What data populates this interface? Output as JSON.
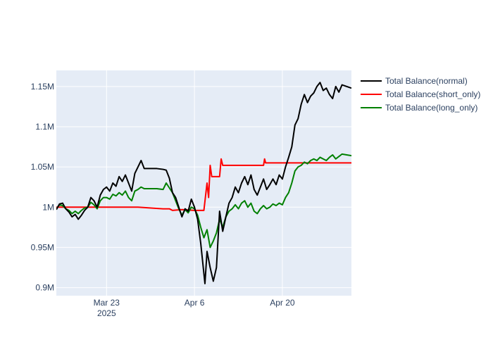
{
  "chart_data": {
    "type": "line",
    "title": "",
    "xlabel": "",
    "ylabel": "",
    "x_range": [
      "2025-03-15",
      "2025-05-01"
    ],
    "ylim": [
      0.89,
      1.17
    ],
    "grid": true,
    "legend_position": "right-top",
    "x_ticks": [
      {
        "date": "2025-03-23",
        "label": "Mar 23",
        "sublabel": "2025"
      },
      {
        "date": "2025-04-06",
        "label": "Apr 6",
        "sublabel": ""
      },
      {
        "date": "2025-04-20",
        "label": "Apr 20",
        "sublabel": ""
      }
    ],
    "y_ticks": [
      {
        "value": 0.9,
        "label": "0.9M"
      },
      {
        "value": 0.95,
        "label": "0.95M"
      },
      {
        "value": 1.0,
        "label": "1M"
      },
      {
        "value": 1.05,
        "label": "1.05M"
      },
      {
        "value": 1.1,
        "label": "1.1M"
      },
      {
        "value": 1.15,
        "label": "1.15M"
      }
    ],
    "series": [
      {
        "name": "Total Balance(normal)",
        "color": "#000000",
        "points": [
          [
            "2025-03-15",
            0.997
          ],
          [
            "2025-03-15T12:00",
            1.004
          ],
          [
            "2025-03-16",
            1.005
          ],
          [
            "2025-03-16T12:00",
            0.998
          ],
          [
            "2025-03-17",
            0.994
          ],
          [
            "2025-03-17T12:00",
            0.988
          ],
          [
            "2025-03-18",
            0.991
          ],
          [
            "2025-03-18T12:00",
            0.985
          ],
          [
            "2025-03-19",
            0.99
          ],
          [
            "2025-03-19T12:00",
            0.996
          ],
          [
            "2025-03-20",
            1.0
          ],
          [
            "2025-03-20T12:00",
            1.012
          ],
          [
            "2025-03-21",
            1.008
          ],
          [
            "2025-03-21T12:00",
            1.0
          ],
          [
            "2025-03-22",
            1.015
          ],
          [
            "2025-03-22T12:00",
            1.022
          ],
          [
            "2025-03-23",
            1.025
          ],
          [
            "2025-03-23T12:00",
            1.02
          ],
          [
            "2025-03-24",
            1.03
          ],
          [
            "2025-03-24T12:00",
            1.026
          ],
          [
            "2025-03-25",
            1.038
          ],
          [
            "2025-03-25T12:00",
            1.032
          ],
          [
            "2025-03-26",
            1.04
          ],
          [
            "2025-03-26T12:00",
            1.03
          ],
          [
            "2025-03-27",
            1.02
          ],
          [
            "2025-03-27T12:00",
            1.042
          ],
          [
            "2025-03-28",
            1.05
          ],
          [
            "2025-03-28T12:00",
            1.058
          ],
          [
            "2025-03-29",
            1.048
          ],
          [
            "2025-03-30",
            1.048
          ],
          [
            "2025-03-31",
            1.048
          ],
          [
            "2025-04-01",
            1.047
          ],
          [
            "2025-04-01T12:00",
            1.046
          ],
          [
            "2025-04-02",
            1.036
          ],
          [
            "2025-04-02T12:00",
            1.018
          ],
          [
            "2025-04-03",
            1.012
          ],
          [
            "2025-04-03T12:00",
            1.0
          ],
          [
            "2025-04-04",
            0.988
          ],
          [
            "2025-04-04T12:00",
            0.998
          ],
          [
            "2025-04-05",
            0.995
          ],
          [
            "2025-04-05T12:00",
            1.01
          ],
          [
            "2025-04-06",
            1.0
          ],
          [
            "2025-04-06T12:00",
            0.985
          ],
          [
            "2025-04-07",
            0.955
          ],
          [
            "2025-04-07T08:00",
            0.93
          ],
          [
            "2025-04-07T16:00",
            0.905
          ],
          [
            "2025-04-08",
            0.945
          ],
          [
            "2025-04-08T12:00",
            0.925
          ],
          [
            "2025-04-09",
            0.908
          ],
          [
            "2025-04-09T12:00",
            0.925
          ],
          [
            "2025-04-10",
            0.995
          ],
          [
            "2025-04-10T12:00",
            0.97
          ],
          [
            "2025-04-11",
            0.988
          ],
          [
            "2025-04-11T12:00",
            1.005
          ],
          [
            "2025-04-12",
            1.012
          ],
          [
            "2025-04-12T12:00",
            1.025
          ],
          [
            "2025-04-13",
            1.018
          ],
          [
            "2025-04-13T12:00",
            1.03
          ],
          [
            "2025-04-14",
            1.038
          ],
          [
            "2025-04-14T12:00",
            1.028
          ],
          [
            "2025-04-15",
            1.04
          ],
          [
            "2025-04-15T12:00",
            1.022
          ],
          [
            "2025-04-16",
            1.015
          ],
          [
            "2025-04-16T12:00",
            1.025
          ],
          [
            "2025-04-17",
            1.035
          ],
          [
            "2025-04-17T12:00",
            1.022
          ],
          [
            "2025-04-18",
            1.028
          ],
          [
            "2025-04-18T12:00",
            1.035
          ],
          [
            "2025-04-19",
            1.028
          ],
          [
            "2025-04-19T12:00",
            1.04
          ],
          [
            "2025-04-20",
            1.035
          ],
          [
            "2025-04-20T12:00",
            1.05
          ],
          [
            "2025-04-21",
            1.062
          ],
          [
            "2025-04-21T12:00",
            1.075
          ],
          [
            "2025-04-22",
            1.102
          ],
          [
            "2025-04-22T12:00",
            1.11
          ],
          [
            "2025-04-23",
            1.128
          ],
          [
            "2025-04-23T12:00",
            1.14
          ],
          [
            "2025-04-24",
            1.13
          ],
          [
            "2025-04-24T12:00",
            1.138
          ],
          [
            "2025-04-25",
            1.142
          ],
          [
            "2025-04-25T12:00",
            1.15
          ],
          [
            "2025-04-26",
            1.155
          ],
          [
            "2025-04-26T12:00",
            1.145
          ],
          [
            "2025-04-27",
            1.148
          ],
          [
            "2025-04-27T12:00",
            1.14
          ],
          [
            "2025-04-28",
            1.135
          ],
          [
            "2025-04-28T12:00",
            1.15
          ],
          [
            "2025-04-29",
            1.143
          ],
          [
            "2025-04-29T12:00",
            1.152
          ],
          [
            "2025-05-01",
            1.148
          ]
        ]
      },
      {
        "name": "Total Balance(short_only)",
        "color": "#ff0000",
        "points": [
          [
            "2025-03-15",
            1.0
          ],
          [
            "2025-03-28",
            1.0
          ],
          [
            "2025-04-01",
            0.998
          ],
          [
            "2025-04-02",
            0.998
          ],
          [
            "2025-04-02T12:00",
            0.996
          ],
          [
            "2025-04-04",
            0.997
          ],
          [
            "2025-04-06",
            0.996
          ],
          [
            "2025-04-07",
            0.996
          ],
          [
            "2025-04-07T12:00",
            0.996
          ],
          [
            "2025-04-08",
            1.03
          ],
          [
            "2025-04-08T06:00",
            1.012
          ],
          [
            "2025-04-08T12:00",
            1.052
          ],
          [
            "2025-04-08T18:00",
            1.038
          ],
          [
            "2025-04-09",
            1.038
          ],
          [
            "2025-04-10",
            1.038
          ],
          [
            "2025-04-10T06:00",
            1.06
          ],
          [
            "2025-04-10T12:00",
            1.052
          ],
          [
            "2025-04-15",
            1.052
          ],
          [
            "2025-04-17",
            1.052
          ],
          [
            "2025-04-17T04:00",
            1.06
          ],
          [
            "2025-04-17T08:00",
            1.055
          ],
          [
            "2025-04-22",
            1.055
          ],
          [
            "2025-05-01",
            1.055
          ]
        ]
      },
      {
        "name": "Total Balance(long_only)",
        "color": "#008000",
        "points": [
          [
            "2025-03-15",
            0.998
          ],
          [
            "2025-03-15T12:00",
            1.003
          ],
          [
            "2025-03-16",
            1.002
          ],
          [
            "2025-03-16T12:00",
            0.998
          ],
          [
            "2025-03-17",
            0.996
          ],
          [
            "2025-03-17T12:00",
            0.992
          ],
          [
            "2025-03-18",
            0.995
          ],
          [
            "2025-03-18T12:00",
            0.992
          ],
          [
            "2025-03-19",
            0.996
          ],
          [
            "2025-03-19T12:00",
            0.999
          ],
          [
            "2025-03-20",
            1.0
          ],
          [
            "2025-03-20T12:00",
            1.006
          ],
          [
            "2025-03-21",
            1.003
          ],
          [
            "2025-03-21T12:00",
            0.998
          ],
          [
            "2025-03-22",
            1.008
          ],
          [
            "2025-03-22T12:00",
            1.012
          ],
          [
            "2025-03-23",
            1.012
          ],
          [
            "2025-03-23T12:00",
            1.01
          ],
          [
            "2025-03-24",
            1.016
          ],
          [
            "2025-03-24T12:00",
            1.014
          ],
          [
            "2025-03-25",
            1.018
          ],
          [
            "2025-03-25T12:00",
            1.015
          ],
          [
            "2025-03-26",
            1.02
          ],
          [
            "2025-03-26T12:00",
            1.012
          ],
          [
            "2025-03-27",
            1.008
          ],
          [
            "2025-03-27T12:00",
            1.02
          ],
          [
            "2025-03-28",
            1.022
          ],
          [
            "2025-03-28T12:00",
            1.025
          ],
          [
            "2025-03-29",
            1.023
          ],
          [
            "2025-03-31",
            1.023
          ],
          [
            "2025-04-01",
            1.022
          ],
          [
            "2025-04-01T12:00",
            1.03
          ],
          [
            "2025-04-02",
            1.024
          ],
          [
            "2025-04-02T12:00",
            1.018
          ],
          [
            "2025-04-03",
            1.008
          ],
          [
            "2025-04-03T12:00",
            0.998
          ],
          [
            "2025-04-04",
            0.99
          ],
          [
            "2025-04-04T12:00",
            0.997
          ],
          [
            "2025-04-05",
            0.993
          ],
          [
            "2025-04-05T12:00",
            1.0
          ],
          [
            "2025-04-06",
            0.998
          ],
          [
            "2025-04-06T12:00",
            0.99
          ],
          [
            "2025-04-07",
            0.975
          ],
          [
            "2025-04-07T12:00",
            0.962
          ],
          [
            "2025-04-08",
            0.972
          ],
          [
            "2025-04-08T12:00",
            0.95
          ],
          [
            "2025-04-09",
            0.958
          ],
          [
            "2025-04-09T12:00",
            0.968
          ],
          [
            "2025-04-10",
            0.985
          ],
          [
            "2025-04-10T12:00",
            0.975
          ],
          [
            "2025-04-11",
            0.988
          ],
          [
            "2025-04-11T12:00",
            0.995
          ],
          [
            "2025-04-12",
            0.998
          ],
          [
            "2025-04-12T12:00",
            1.003
          ],
          [
            "2025-04-13",
            0.998
          ],
          [
            "2025-04-13T12:00",
            1.005
          ],
          [
            "2025-04-14",
            1.008
          ],
          [
            "2025-04-14T12:00",
            1.0
          ],
          [
            "2025-04-15",
            1.005
          ],
          [
            "2025-04-15T12:00",
            0.995
          ],
          [
            "2025-04-16",
            0.992
          ],
          [
            "2025-04-16T12:00",
            0.998
          ],
          [
            "2025-04-17",
            1.002
          ],
          [
            "2025-04-17T12:00",
            0.998
          ],
          [
            "2025-04-18",
            1.0
          ],
          [
            "2025-04-18T12:00",
            1.004
          ],
          [
            "2025-04-19",
            1.002
          ],
          [
            "2025-04-19T12:00",
            1.005
          ],
          [
            "2025-04-20",
            1.003
          ],
          [
            "2025-04-20T12:00",
            1.012
          ],
          [
            "2025-04-21",
            1.018
          ],
          [
            "2025-04-21T12:00",
            1.03
          ],
          [
            "2025-04-22",
            1.045
          ],
          [
            "2025-04-22T12:00",
            1.05
          ],
          [
            "2025-04-23",
            1.052
          ],
          [
            "2025-04-23T12:00",
            1.056
          ],
          [
            "2025-04-24",
            1.054
          ],
          [
            "2025-04-24T12:00",
            1.058
          ],
          [
            "2025-04-25",
            1.06
          ],
          [
            "2025-04-25T12:00",
            1.058
          ],
          [
            "2025-04-26",
            1.062
          ],
          [
            "2025-04-26T12:00",
            1.06
          ],
          [
            "2025-04-27",
            1.058
          ],
          [
            "2025-04-27T12:00",
            1.062
          ],
          [
            "2025-04-28",
            1.065
          ],
          [
            "2025-04-28T12:00",
            1.06
          ],
          [
            "2025-04-29",
            1.063
          ],
          [
            "2025-04-29T12:00",
            1.066
          ],
          [
            "2025-05-01",
            1.064
          ]
        ]
      }
    ]
  }
}
